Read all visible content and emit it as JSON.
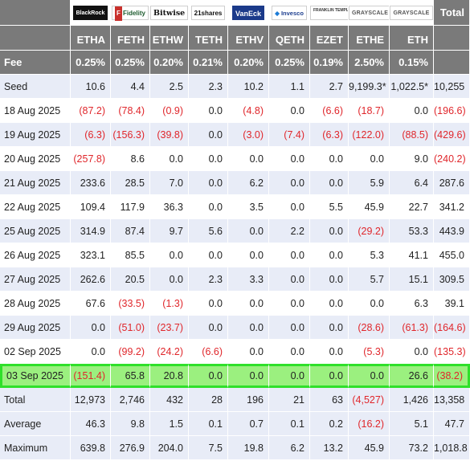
{
  "header": {
    "logos": [
      {
        "name": "BlackRock"
      },
      {
        "name": "Fidelity"
      },
      {
        "name": "Bitwise"
      },
      {
        "name": "21shares"
      },
      {
        "name": "VanEck"
      },
      {
        "name": "Invesco"
      },
      {
        "name": "FRANKLIN TEMPLETON"
      },
      {
        "name": "GRAYSCALE"
      },
      {
        "name": "GRAYSCALE"
      }
    ],
    "total_label": "Total",
    "tickers": [
      "ETHA",
      "FETH",
      "ETHW",
      "TETH",
      "ETHV",
      "QETH",
      "EZET",
      "ETHE",
      "ETH"
    ]
  },
  "fee_row": {
    "label": "Fee",
    "values": [
      "0.25%",
      "0.25%",
      "0.20%",
      "0.21%",
      "0.20%",
      "0.25%",
      "0.19%",
      "2.50%",
      "0.15%",
      ""
    ]
  },
  "rows": [
    {
      "label": "Seed",
      "values": [
        "10.6",
        "4.4",
        "2.5",
        "2.3",
        "10.2",
        "1.1",
        "2.7",
        "9,199.3*",
        "1,022.5*",
        "10,255"
      ]
    },
    {
      "label": "18 Aug 2025",
      "values": [
        "(87.2)",
        "(78.4)",
        "(0.9)",
        "0.0",
        "(4.8)",
        "0.0",
        "(6.6)",
        "(18.7)",
        "0.0",
        "(196.6)"
      ]
    },
    {
      "label": "19 Aug 2025",
      "values": [
        "(6.3)",
        "(156.3)",
        "(39.8)",
        "0.0",
        "(3.0)",
        "(7.4)",
        "(6.3)",
        "(122.0)",
        "(88.5)",
        "(429.6)"
      ]
    },
    {
      "label": "20 Aug 2025",
      "values": [
        "(257.8)",
        "8.6",
        "0.0",
        "0.0",
        "0.0",
        "0.0",
        "0.0",
        "0.0",
        "9.0",
        "(240.2)"
      ]
    },
    {
      "label": "21 Aug 2025",
      "values": [
        "233.6",
        "28.5",
        "7.0",
        "0.0",
        "6.2",
        "0.0",
        "0.0",
        "5.9",
        "6.4",
        "287.6"
      ]
    },
    {
      "label": "22 Aug 2025",
      "values": [
        "109.4",
        "117.9",
        "36.3",
        "0.0",
        "3.5",
        "0.0",
        "5.5",
        "45.9",
        "22.7",
        "341.2"
      ]
    },
    {
      "label": "25 Aug 2025",
      "values": [
        "314.9",
        "87.4",
        "9.7",
        "5.6",
        "0.0",
        "2.2",
        "0.0",
        "(29.2)",
        "53.3",
        "443.9"
      ]
    },
    {
      "label": "26 Aug 2025",
      "values": [
        "323.1",
        "85.5",
        "0.0",
        "0.0",
        "0.0",
        "0.0",
        "0.0",
        "5.3",
        "41.1",
        "455.0"
      ]
    },
    {
      "label": "27 Aug 2025",
      "values": [
        "262.6",
        "20.5",
        "0.0",
        "2.3",
        "3.3",
        "0.0",
        "0.0",
        "5.7",
        "15.1",
        "309.5"
      ]
    },
    {
      "label": "28 Aug 2025",
      "values": [
        "67.6",
        "(33.5)",
        "(1.3)",
        "0.0",
        "0.0",
        "0.0",
        "0.0",
        "0.0",
        "6.3",
        "39.1"
      ]
    },
    {
      "label": "29 Aug 2025",
      "values": [
        "0.0",
        "(51.0)",
        "(23.7)",
        "0.0",
        "0.0",
        "0.0",
        "0.0",
        "(28.6)",
        "(61.3)",
        "(164.6)"
      ]
    },
    {
      "label": "02 Sep 2025",
      "values": [
        "0.0",
        "(99.2)",
        "(24.2)",
        "(6.6)",
        "0.0",
        "0.0",
        "0.0",
        "(5.3)",
        "0.0",
        "(135.3)"
      ]
    },
    {
      "label": "03 Sep 2025",
      "values": [
        "(151.4)",
        "65.8",
        "20.8",
        "0.0",
        "0.0",
        "0.0",
        "0.0",
        "0.0",
        "26.6",
        "(38.2)"
      ]
    }
  ],
  "summary": [
    {
      "label": "Total",
      "values": [
        "12,973",
        "2,746",
        "432",
        "28",
        "196",
        "21",
        "63",
        "(4,527)",
        "1,426",
        "13,358"
      ]
    },
    {
      "label": "Average",
      "values": [
        "46.3",
        "9.8",
        "1.5",
        "0.1",
        "0.7",
        "0.1",
        "0.2",
        "(16.2)",
        "5.1",
        "47.7"
      ]
    },
    {
      "label": "Maximum",
      "values": [
        "639.8",
        "276.9",
        "204.0",
        "7.5",
        "19.8",
        "6.2",
        "13.2",
        "45.9",
        "73.2",
        "1,018.8"
      ]
    }
  ],
  "colors": {
    "header_gray": "#7a7a7a",
    "row_alt": "#e8ecf7",
    "negative": "#e0262b",
    "highlight_fill": "#9bf07f",
    "highlight_border": "#2fe02a"
  }
}
